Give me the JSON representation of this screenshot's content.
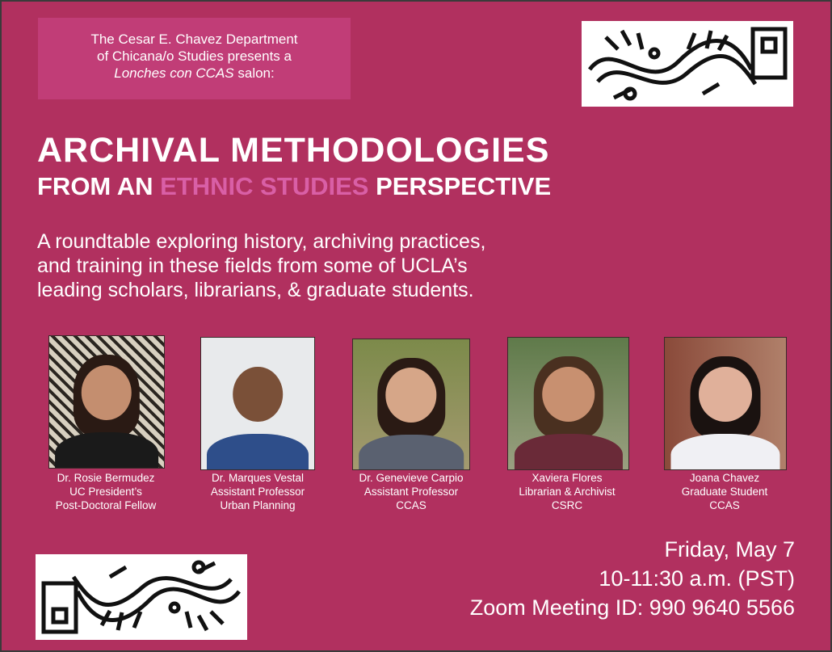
{
  "intro": {
    "line1": "The Cesar E. Chavez Department",
    "line2": "of Chicana/o Studies presents a",
    "italic": "Lonches con CCAS",
    "after": " salon:"
  },
  "title": {
    "line1": "ARCHIVAL METHODOLOGIES",
    "pre": "FROM AN ",
    "highlight": "ETHNIC STUDIES",
    "post": " PERSPECTIVE"
  },
  "description": [
    "A roundtable exploring history, archiving practices,",
    "and training in these fields from some of UCLA’s",
    "leading scholars, librarians, & graduate students."
  ],
  "speakers": [
    {
      "name": "Dr. Rosie Bermudez",
      "line2": "UC President’s",
      "line3": "Post-Doctoral Fellow"
    },
    {
      "name": "Dr. Marques Vestal",
      "line2": "Assistant Professor",
      "line3": "Urban Planning"
    },
    {
      "name": "Dr. Genevieve Carpio",
      "line2": "Assistant Professor",
      "line3": "CCAS"
    },
    {
      "name": "Xaviera Flores",
      "line2": "Librarian & Archivist",
      "line3": "CSRC"
    },
    {
      "name": "Joana Chavez",
      "line2": "Graduate Student",
      "line3": "CCAS"
    }
  ],
  "event": {
    "date": "Friday, May 7",
    "time": "10-11:30 a.m. (PST)",
    "zoom": "Zoom Meeting ID: 990 9640 5566"
  },
  "colors": {
    "background": "#b1305f",
    "intro_box": "#c13d77",
    "highlight": "#d95fa6"
  }
}
